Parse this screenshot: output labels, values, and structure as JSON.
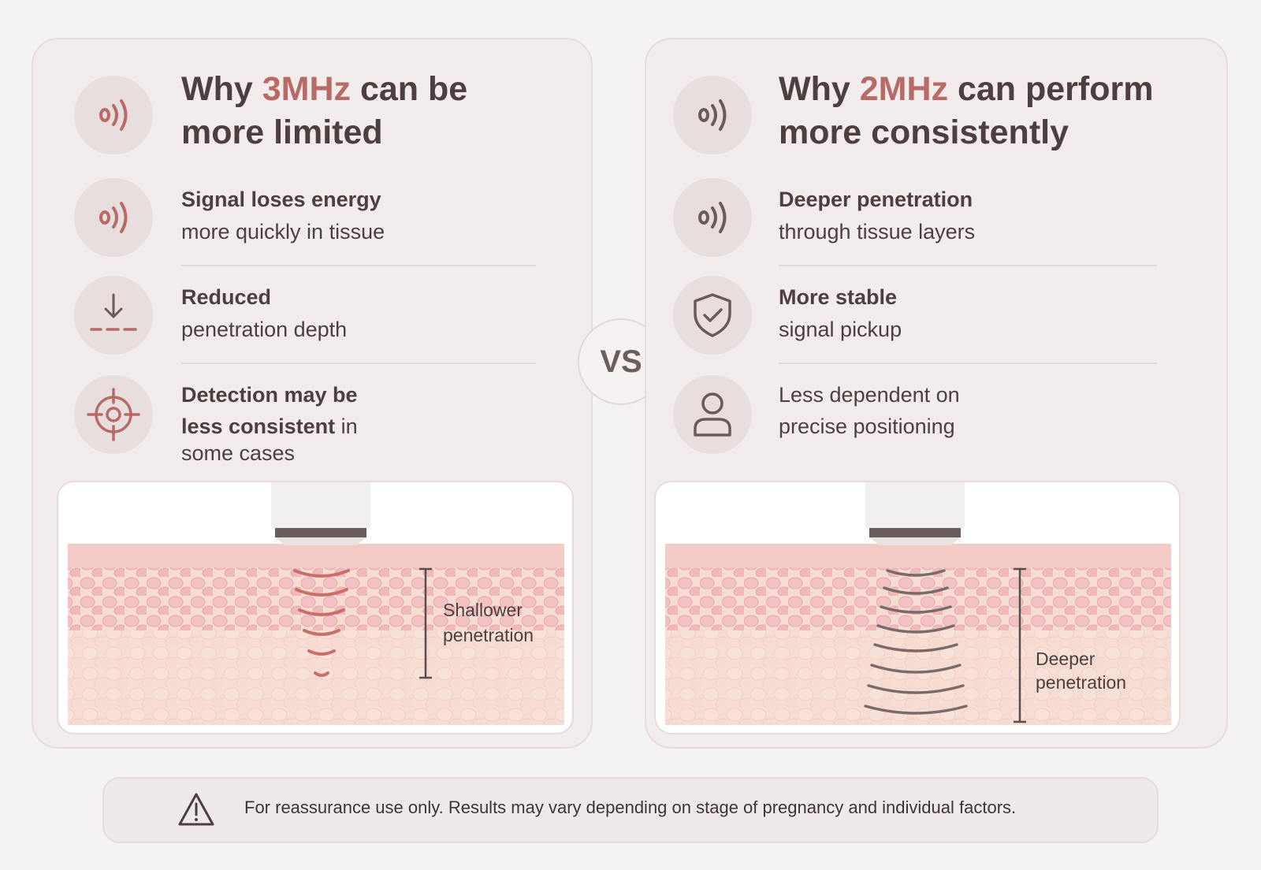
{
  "left": {
    "title_pre": "Why ",
    "title_hl": "3MHz",
    "title_post1": " can be",
    "title_post2": "more limited",
    "row1_bold": "Signal loses energy",
    "row1_rest": "more quickly in tissue",
    "row2_bold": "Reduced",
    "row2_rest": "penetration depth",
    "row3_bold1": "Detection may be",
    "row3_bold2": "less consistent",
    "row3_rest1": " in",
    "row3_rest2": "some cases",
    "label1": "Shallower",
    "label2": "penetration"
  },
  "right": {
    "title_pre": "Why ",
    "title_hl": "2MHz",
    "title_post1": " can perform",
    "title_post2": "more consistently",
    "row1_bold": "Deeper penetration",
    "row1_rest": "through tissue layers",
    "row2_bold": "More stable",
    "row2_rest": "signal pickup",
    "row3_rest1": "Less dependent on",
    "row3_rest2": "precise positioning",
    "label1": "Deeper",
    "label2": "penetration"
  },
  "vs": "VS",
  "footer": "For reassurance use only. Results may vary depending on stage of pregnancy and individual factors.",
  "icons": {
    "signal": "signal-waves-icon",
    "arrow": "arrow-down-depth-icon",
    "target": "target-crosshair-icon",
    "shield": "shield-check-icon",
    "person": "person-icon",
    "warning": "warning-triangle-icon"
  },
  "colors": {
    "accent": "#b86b66",
    "text": "#4d3f3f"
  }
}
